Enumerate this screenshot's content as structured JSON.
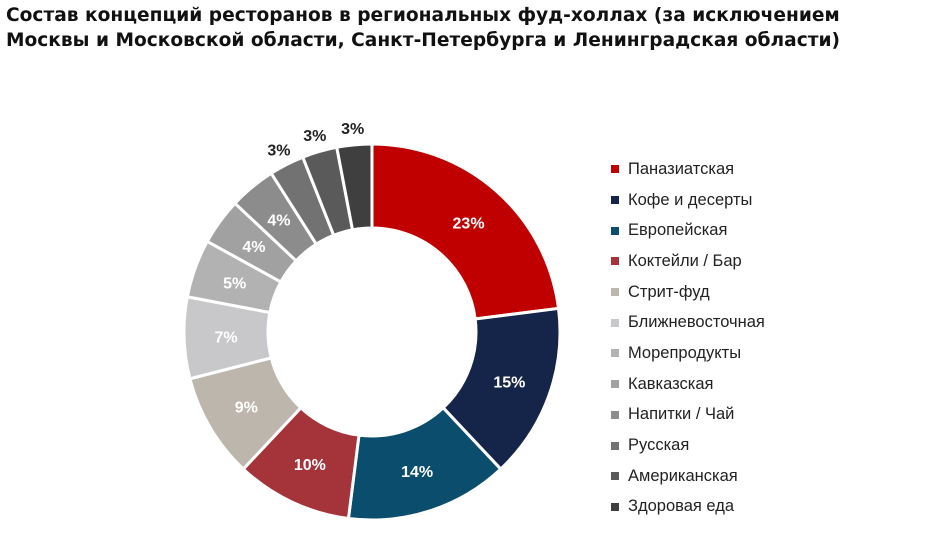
{
  "title_lines": [
    "Состав концепций ресторанов в региональных фуд-холлах (за исключением",
    "Москвы и Московской области, Санкт-Петербурга и Ленинградская области)"
  ],
  "chart_data": {
    "type": "pie",
    "donut": true,
    "title": "Состав концепций ресторанов в региональных фуд-холлах (за исключением Москвы и Московской области, Санкт-Петербурга и Ленинградская области)",
    "legend_position": "right",
    "unit": "%",
    "categories": [
      "Паназиатская",
      "Кофе и десерты",
      "Европейская",
      "Коктейли / Бар",
      "Стрит-фуд",
      "Ближневосточная",
      "Морепродукты",
      "Кавказская",
      "Напитки / Чай",
      "Русская",
      "Американская",
      "Здоровая еда"
    ],
    "values": [
      23,
      15,
      14,
      10,
      9,
      7,
      5,
      4,
      4,
      3,
      3,
      3
    ],
    "labels": [
      "23%",
      "15%",
      "14%",
      "10%",
      "9%",
      "7%",
      "5%",
      "4%",
      "4%",
      "3%",
      "3%",
      "3%"
    ],
    "colors": [
      "#c00000",
      "#15254a",
      "#0a4d6c",
      "#a5333a",
      "#bdb6ad",
      "#c8c8cb",
      "#b2b2b3",
      "#a1a1a1",
      "#8c8c8c",
      "#727272",
      "#5a5a5a",
      "#3f3f3f"
    ]
  }
}
